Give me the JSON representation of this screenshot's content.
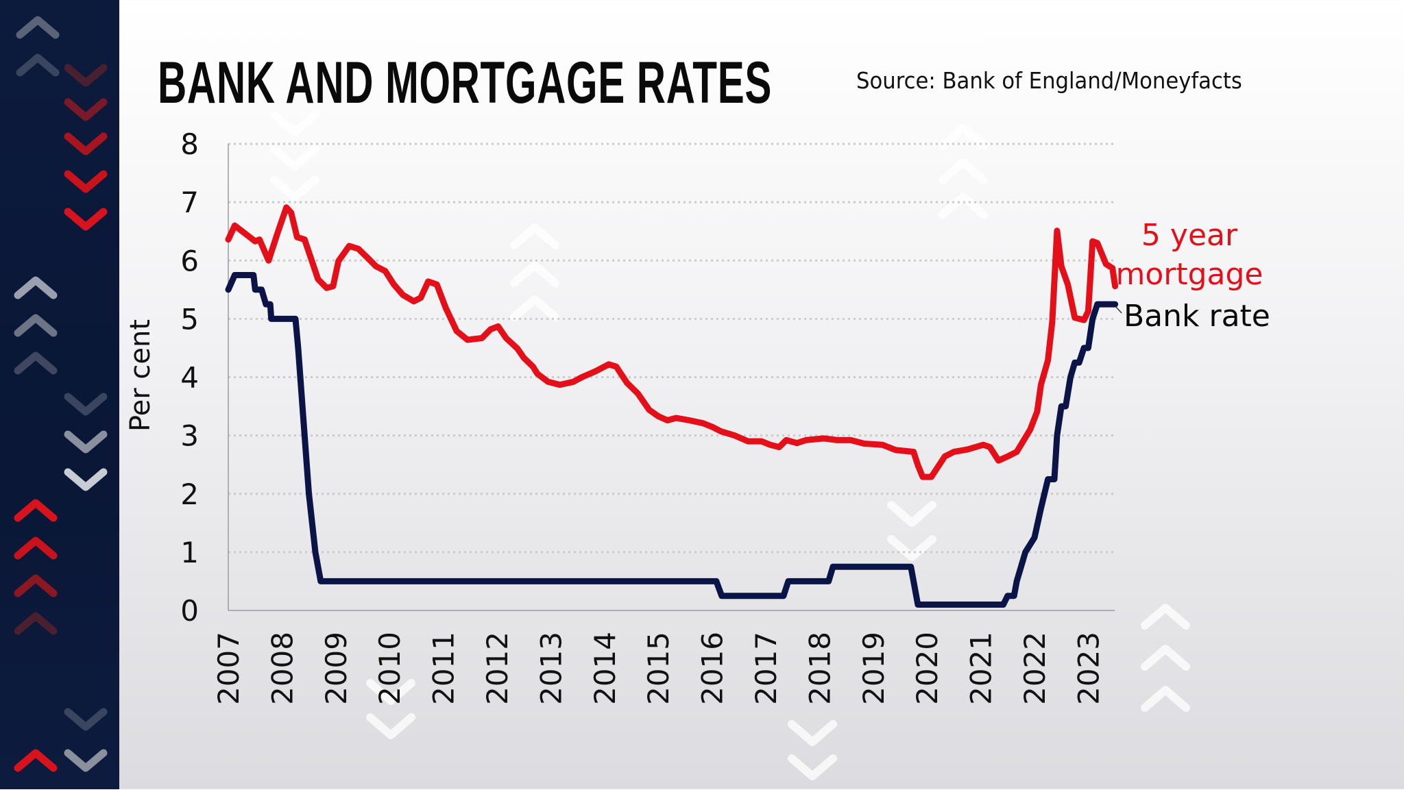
{
  "title": "BANK AND MORTGAGE RATES",
  "source": "Source: Bank of England/Moneyfacts",
  "colors": {
    "mortgage": "#e3101a",
    "bank_rate": "#0b1447",
    "sidebar": "#0c1a3c",
    "sidebar_chevron_red": "#d7141e"
  },
  "chart_data": {
    "type": "line",
    "title": "BANK AND MORTGAGE RATES",
    "xlabel": "",
    "ylabel": "Per cent",
    "ylim": [
      0,
      8
    ],
    "xlim": [
      2007,
      2023.5
    ],
    "grid": "horizontal dotted",
    "y_ticks": [
      "0",
      "1",
      "2",
      "3",
      "4",
      "5",
      "6",
      "7",
      "8"
    ],
    "x_ticks": [
      "2007",
      "2008",
      "2009",
      "2010",
      "2011",
      "2012",
      "2013",
      "2014",
      "2015",
      "2016",
      "2017",
      "2018",
      "2019",
      "2020",
      "2021",
      "2022",
      "2023"
    ],
    "series": [
      {
        "name": "5 year mortgage",
        "label_lines": [
          "5 year",
          "mortgage"
        ],
        "color": "#e3101a",
        "points": [
          [
            2007.0,
            6.36
          ],
          [
            2007.12,
            6.6
          ],
          [
            2007.33,
            6.45
          ],
          [
            2007.5,
            6.33
          ],
          [
            2007.58,
            6.36
          ],
          [
            2007.75,
            6.0
          ],
          [
            2007.92,
            6.48
          ],
          [
            2008.08,
            6.91
          ],
          [
            2008.17,
            6.82
          ],
          [
            2008.28,
            6.4
          ],
          [
            2008.42,
            6.36
          ],
          [
            2008.67,
            5.68
          ],
          [
            2008.83,
            5.53
          ],
          [
            2008.95,
            5.56
          ],
          [
            2009.05,
            5.99
          ],
          [
            2009.25,
            6.25
          ],
          [
            2009.42,
            6.2
          ],
          [
            2009.62,
            6.02
          ],
          [
            2009.75,
            5.9
          ],
          [
            2009.92,
            5.82
          ],
          [
            2010.08,
            5.59
          ],
          [
            2010.25,
            5.41
          ],
          [
            2010.45,
            5.3
          ],
          [
            2010.58,
            5.36
          ],
          [
            2010.72,
            5.64
          ],
          [
            2010.88,
            5.59
          ],
          [
            2011.05,
            5.18
          ],
          [
            2011.25,
            4.79
          ],
          [
            2011.45,
            4.64
          ],
          [
            2011.72,
            4.67
          ],
          [
            2011.88,
            4.82
          ],
          [
            2012.02,
            4.87
          ],
          [
            2012.17,
            4.67
          ],
          [
            2012.38,
            4.49
          ],
          [
            2012.5,
            4.33
          ],
          [
            2012.67,
            4.18
          ],
          [
            2012.75,
            4.06
          ],
          [
            2012.95,
            3.92
          ],
          [
            2013.17,
            3.87
          ],
          [
            2013.42,
            3.92
          ],
          [
            2013.58,
            4.0
          ],
          [
            2013.83,
            4.1
          ],
          [
            2014.08,
            4.22
          ],
          [
            2014.22,
            4.18
          ],
          [
            2014.42,
            3.9
          ],
          [
            2014.62,
            3.72
          ],
          [
            2014.83,
            3.44
          ],
          [
            2015.0,
            3.33
          ],
          [
            2015.17,
            3.26
          ],
          [
            2015.33,
            3.3
          ],
          [
            2015.58,
            3.26
          ],
          [
            2015.83,
            3.21
          ],
          [
            2016.0,
            3.15
          ],
          [
            2016.17,
            3.07
          ],
          [
            2016.42,
            3.0
          ],
          [
            2016.67,
            2.9
          ],
          [
            2016.92,
            2.9
          ],
          [
            2017.08,
            2.84
          ],
          [
            2017.25,
            2.8
          ],
          [
            2017.38,
            2.92
          ],
          [
            2017.58,
            2.87
          ],
          [
            2017.75,
            2.92
          ],
          [
            2018.08,
            2.95
          ],
          [
            2018.33,
            2.92
          ],
          [
            2018.58,
            2.92
          ],
          [
            2018.83,
            2.86
          ],
          [
            2019.17,
            2.84
          ],
          [
            2019.42,
            2.75
          ],
          [
            2019.75,
            2.72
          ],
          [
            2019.83,
            2.49
          ],
          [
            2019.92,
            2.29
          ],
          [
            2020.08,
            2.29
          ],
          [
            2020.33,
            2.64
          ],
          [
            2020.5,
            2.72
          ],
          [
            2020.75,
            2.76
          ],
          [
            2021.05,
            2.84
          ],
          [
            2021.17,
            2.8
          ],
          [
            2021.33,
            2.57
          ],
          [
            2021.5,
            2.64
          ],
          [
            2021.67,
            2.72
          ],
          [
            2021.92,
            3.1
          ],
          [
            2022.05,
            3.41
          ],
          [
            2022.12,
            3.87
          ],
          [
            2022.25,
            4.29
          ],
          [
            2022.33,
            4.95
          ],
          [
            2022.42,
            6.51
          ],
          [
            2022.5,
            5.9
          ],
          [
            2022.62,
            5.59
          ],
          [
            2022.75,
            5.02
          ],
          [
            2022.92,
            4.98
          ],
          [
            2023.0,
            5.13
          ],
          [
            2023.08,
            6.33
          ],
          [
            2023.17,
            6.3
          ],
          [
            2023.33,
            5.94
          ],
          [
            2023.45,
            5.87
          ],
          [
            2023.5,
            5.56
          ]
        ]
      },
      {
        "name": "Bank rate",
        "label_lines": [
          "Bank rate"
        ],
        "color": "#0b1447",
        "points": [
          [
            2007.0,
            5.5
          ],
          [
            2007.12,
            5.75
          ],
          [
            2007.47,
            5.75
          ],
          [
            2007.5,
            5.5
          ],
          [
            2007.62,
            5.5
          ],
          [
            2007.7,
            5.25
          ],
          [
            2007.78,
            5.25
          ],
          [
            2007.8,
            5.0
          ],
          [
            2008.25,
            5.0
          ],
          [
            2008.3,
            4.5
          ],
          [
            2008.42,
            3.0
          ],
          [
            2008.5,
            2.0
          ],
          [
            2008.62,
            1.0
          ],
          [
            2008.72,
            0.5
          ],
          [
            2016.08,
            0.5
          ],
          [
            2016.18,
            0.25
          ],
          [
            2017.33,
            0.25
          ],
          [
            2017.42,
            0.5
          ],
          [
            2018.17,
            0.5
          ],
          [
            2018.25,
            0.75
          ],
          [
            2019.7,
            0.75
          ],
          [
            2019.83,
            0.1
          ],
          [
            2021.42,
            0.1
          ],
          [
            2021.5,
            0.25
          ],
          [
            2021.62,
            0.25
          ],
          [
            2021.67,
            0.5
          ],
          [
            2021.75,
            0.75
          ],
          [
            2021.83,
            1.0
          ],
          [
            2022.0,
            1.25
          ],
          [
            2022.12,
            1.75
          ],
          [
            2022.25,
            2.25
          ],
          [
            2022.37,
            2.25
          ],
          [
            2022.42,
            3.0
          ],
          [
            2022.5,
            3.5
          ],
          [
            2022.58,
            3.5
          ],
          [
            2022.67,
            4.0
          ],
          [
            2022.75,
            4.25
          ],
          [
            2022.83,
            4.25
          ],
          [
            2022.92,
            4.5
          ],
          [
            2023.0,
            4.5
          ],
          [
            2023.08,
            5.0
          ],
          [
            2023.17,
            5.25
          ],
          [
            2023.5,
            5.25
          ]
        ]
      }
    ]
  }
}
